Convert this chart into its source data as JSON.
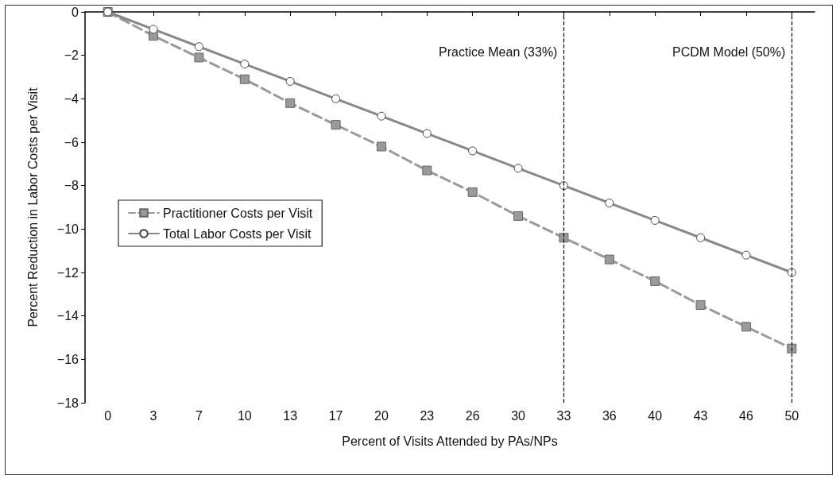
{
  "chart_data": {
    "type": "line",
    "xlabel": "Percent of Visits Attended by PAs/NPs",
    "ylabel": "Percent Reduction in Labor Costs per Visit",
    "categories": [
      "0",
      "3",
      "7",
      "10",
      "13",
      "17",
      "20",
      "23",
      "26",
      "30",
      "33",
      "36",
      "40",
      "43",
      "46",
      "50"
    ],
    "ylim": [
      -18,
      0
    ],
    "yticks": [
      -18,
      -16,
      -14,
      -12,
      -10,
      -8,
      -6,
      -4,
      -2,
      0
    ],
    "grid": false,
    "legend": "left",
    "series": [
      {
        "name": "Practitioner Costs per Visit",
        "color": "#9a9a9a",
        "marker": "square",
        "line_style": "dashed",
        "values": [
          0,
          -1.1,
          -2.1,
          -3.1,
          -4.2,
          -5.2,
          -6.2,
          -7.3,
          -8.3,
          -9.4,
          -10.4,
          -11.4,
          -12.4,
          -13.5,
          -14.5,
          -15.5
        ]
      },
      {
        "name": "Total Labor Costs per Visit",
        "color": "#888888",
        "marker": "circle",
        "line_style": "solid",
        "values": [
          0,
          -0.8,
          -1.6,
          -2.4,
          -3.2,
          -4.0,
          -4.8,
          -5.6,
          -6.4,
          -7.2,
          -8.0,
          -8.8,
          -9.6,
          -10.4,
          -11.2,
          -12.0
        ]
      }
    ],
    "ref_lines": [
      {
        "axis": "x",
        "value": "33",
        "label": "Practice Mean (33%)",
        "color": "#000000",
        "line_style": "dashed"
      },
      {
        "axis": "x",
        "value": "50",
        "label": "PCDM Model (50%)",
        "color": "#000000",
        "line_style": "dashed"
      }
    ]
  }
}
